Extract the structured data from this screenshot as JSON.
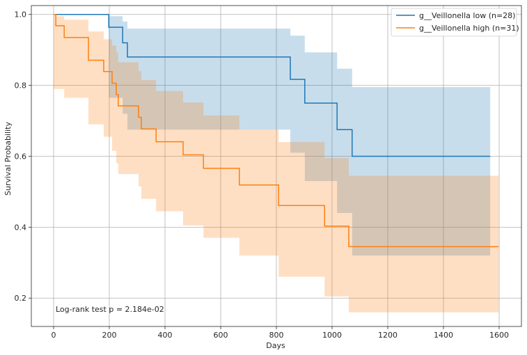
{
  "chart_data": {
    "type": "line",
    "subtype": "kaplan-meier",
    "title": "",
    "xlabel": "Days",
    "ylabel": "Survival Probability",
    "xlim": [
      -80,
      1680
    ],
    "ylim": [
      0.12,
      1.025
    ],
    "xticks": [
      0,
      200,
      400,
      600,
      800,
      1000,
      1200,
      1400,
      1600
    ],
    "yticks": [
      0.2,
      0.4,
      0.6,
      0.8,
      1.0
    ],
    "ytick_labels": [
      "0.2",
      "0.4",
      "0.6",
      "0.8",
      "1.0"
    ],
    "grid": true,
    "legend_position": "top-right",
    "annotation": "Log-rank test p = 2.184e-02",
    "series": [
      {
        "name": "g__Veillonella low (n=28)",
        "color": "#1f77b4",
        "fill_color": "#1f77b4",
        "steps": [
          [
            0,
            1.0
          ],
          [
            198,
            0.964
          ],
          [
            248,
            0.92
          ],
          [
            265,
            0.88
          ],
          [
            850,
            0.817
          ],
          [
            902,
            0.75
          ],
          [
            1018,
            0.675
          ],
          [
            1072,
            0.6
          ],
          [
            1568,
            0.6
          ]
        ],
        "ci": [
          [
            0,
            1.0,
            1.0
          ],
          [
            198,
            0.765,
            0.995
          ],
          [
            248,
            0.72,
            0.98
          ],
          [
            265,
            0.675,
            0.96
          ],
          [
            850,
            0.61,
            0.94
          ],
          [
            902,
            0.53,
            0.893
          ],
          [
            1018,
            0.44,
            0.847
          ],
          [
            1072,
            0.32,
            0.795
          ],
          [
            1568,
            0.32,
            0.795
          ]
        ]
      },
      {
        "name": "g__Veillonella high (n=31)",
        "color": "#ff7f0e",
        "fill_color": "#ff7f0e",
        "steps": [
          [
            0,
            1.0
          ],
          [
            8,
            0.968
          ],
          [
            38,
            0.935
          ],
          [
            125,
            0.871
          ],
          [
            180,
            0.839
          ],
          [
            210,
            0.806
          ],
          [
            225,
            0.774
          ],
          [
            232,
            0.742
          ],
          [
            305,
            0.71
          ],
          [
            315,
            0.677
          ],
          [
            368,
            0.641
          ],
          [
            465,
            0.604
          ],
          [
            538,
            0.566
          ],
          [
            667,
            0.519
          ],
          [
            808,
            0.461
          ],
          [
            973,
            0.403
          ],
          [
            1060,
            0.345
          ],
          [
            1598,
            0.345
          ]
        ],
        "ci": [
          [
            0,
            0.79,
            1.0
          ],
          [
            8,
            0.79,
            0.995
          ],
          [
            38,
            0.765,
            0.985
          ],
          [
            125,
            0.69,
            0.952
          ],
          [
            180,
            0.655,
            0.93
          ],
          [
            210,
            0.615,
            0.912
          ],
          [
            225,
            0.58,
            0.893
          ],
          [
            232,
            0.55,
            0.865
          ],
          [
            305,
            0.515,
            0.84
          ],
          [
            315,
            0.48,
            0.815
          ],
          [
            368,
            0.445,
            0.784
          ],
          [
            465,
            0.405,
            0.752
          ],
          [
            538,
            0.37,
            0.715
          ],
          [
            667,
            0.32,
            0.675
          ],
          [
            808,
            0.26,
            0.64
          ],
          [
            973,
            0.205,
            0.595
          ],
          [
            1060,
            0.16,
            0.545
          ],
          [
            1598,
            0.16,
            0.545
          ]
        ]
      }
    ]
  }
}
